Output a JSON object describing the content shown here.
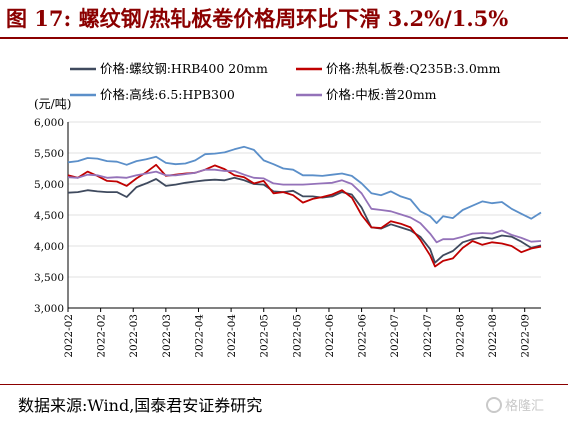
{
  "header": {
    "title": "图 17:  螺纹钢/热轧板卷价格周环比下滑 3.2%/1.5%"
  },
  "footer": {
    "source": "数据来源:Wind,国泰君安证券研究",
    "watermark_text": "格隆汇"
  },
  "chart_data": {
    "type": "line",
    "unit_label": "(元/吨)",
    "ylim": [
      3000,
      6000
    ],
    "yticks": [
      3000,
      3500,
      4000,
      4500,
      5000,
      5500,
      6000
    ],
    "ytick_labels": [
      "3,000",
      "3,500",
      "4,000",
      "4,500",
      "5,000",
      "5,500",
      "6,000"
    ],
    "xticks": [
      "2022-02",
      "2022-02",
      "2022-03",
      "2022-03",
      "2022-04",
      "2022-04",
      "2022-05",
      "2022-05",
      "2022-06",
      "2022-06",
      "2022-07",
      "2022-07",
      "2022-08",
      "2022-08",
      "2022-09"
    ],
    "grid": "horizontal",
    "legend_position": "top",
    "x_index_range": [
      0,
      14.5
    ],
    "series": [
      {
        "name": "价格:螺纹钢:HRB400 20mm",
        "color": "#3f4a5e",
        "points": [
          [
            0,
            4860
          ],
          [
            0.3,
            4870
          ],
          [
            0.6,
            4900
          ],
          [
            0.9,
            4880
          ],
          [
            1.2,
            4870
          ],
          [
            1.5,
            4870
          ],
          [
            1.8,
            4790
          ],
          [
            2.1,
            4950
          ],
          [
            2.4,
            5010
          ],
          [
            2.7,
            5080
          ],
          [
            3.0,
            4970
          ],
          [
            3.3,
            4990
          ],
          [
            3.6,
            5020
          ],
          [
            3.9,
            5040
          ],
          [
            4.2,
            5060
          ],
          [
            4.5,
            5070
          ],
          [
            4.8,
            5060
          ],
          [
            5.1,
            5100
          ],
          [
            5.4,
            5060
          ],
          [
            5.7,
            5000
          ],
          [
            6.0,
            4990
          ],
          [
            6.3,
            4880
          ],
          [
            6.6,
            4870
          ],
          [
            6.9,
            4890
          ],
          [
            7.2,
            4800
          ],
          [
            7.5,
            4800
          ],
          [
            7.8,
            4780
          ],
          [
            8.1,
            4800
          ],
          [
            8.4,
            4870
          ],
          [
            8.7,
            4830
          ],
          [
            9.0,
            4620
          ],
          [
            9.3,
            4300
          ],
          [
            9.6,
            4280
          ],
          [
            9.9,
            4350
          ],
          [
            10.2,
            4300
          ],
          [
            10.5,
            4250
          ],
          [
            10.8,
            4150
          ],
          [
            11.1,
            3950
          ],
          [
            11.25,
            3730
          ],
          [
            11.5,
            3850
          ],
          [
            11.8,
            3920
          ],
          [
            12.1,
            4060
          ],
          [
            12.4,
            4110
          ],
          [
            12.7,
            4140
          ],
          [
            13.0,
            4120
          ],
          [
            13.3,
            4170
          ],
          [
            13.6,
            4150
          ],
          [
            13.9,
            4070
          ],
          [
            14.2,
            3970
          ],
          [
            14.5,
            4010
          ]
        ]
      },
      {
        "name": "价格:热轧板卷:Q235B:3.0mm",
        "color": "#c00000",
        "points": [
          [
            0,
            5140
          ],
          [
            0.3,
            5100
          ],
          [
            0.6,
            5200
          ],
          [
            0.9,
            5130
          ],
          [
            1.2,
            5050
          ],
          [
            1.5,
            5040
          ],
          [
            1.8,
            4970
          ],
          [
            2.1,
            5090
          ],
          [
            2.4,
            5190
          ],
          [
            2.7,
            5310
          ],
          [
            3.0,
            5130
          ],
          [
            3.3,
            5150
          ],
          [
            3.6,
            5170
          ],
          [
            3.9,
            5180
          ],
          [
            4.2,
            5230
          ],
          [
            4.5,
            5300
          ],
          [
            4.8,
            5240
          ],
          [
            5.1,
            5140
          ],
          [
            5.4,
            5110
          ],
          [
            5.7,
            5010
          ],
          [
            6.0,
            5050
          ],
          [
            6.3,
            4850
          ],
          [
            6.6,
            4870
          ],
          [
            6.9,
            4820
          ],
          [
            7.2,
            4700
          ],
          [
            7.5,
            4760
          ],
          [
            7.8,
            4790
          ],
          [
            8.1,
            4830
          ],
          [
            8.4,
            4900
          ],
          [
            8.7,
            4780
          ],
          [
            9.0,
            4500
          ],
          [
            9.3,
            4300
          ],
          [
            9.6,
            4290
          ],
          [
            9.9,
            4400
          ],
          [
            10.2,
            4360
          ],
          [
            10.5,
            4300
          ],
          [
            10.8,
            4100
          ],
          [
            11.1,
            3850
          ],
          [
            11.25,
            3670
          ],
          [
            11.5,
            3760
          ],
          [
            11.8,
            3800
          ],
          [
            12.1,
            3970
          ],
          [
            12.4,
            4080
          ],
          [
            12.7,
            4020
          ],
          [
            13.0,
            4060
          ],
          [
            13.3,
            4040
          ],
          [
            13.6,
            4000
          ],
          [
            13.9,
            3900
          ],
          [
            14.2,
            3960
          ],
          [
            14.5,
            3990
          ]
        ]
      },
      {
        "name": "价格:高线:6.5:HPB300",
        "color": "#5b8fc9",
        "points": [
          [
            0,
            5350
          ],
          [
            0.3,
            5370
          ],
          [
            0.6,
            5420
          ],
          [
            0.9,
            5410
          ],
          [
            1.2,
            5370
          ],
          [
            1.5,
            5360
          ],
          [
            1.8,
            5310
          ],
          [
            2.1,
            5370
          ],
          [
            2.4,
            5400
          ],
          [
            2.7,
            5440
          ],
          [
            3.0,
            5340
          ],
          [
            3.3,
            5320
          ],
          [
            3.6,
            5330
          ],
          [
            3.9,
            5380
          ],
          [
            4.2,
            5480
          ],
          [
            4.5,
            5490
          ],
          [
            4.8,
            5510
          ],
          [
            5.1,
            5560
          ],
          [
            5.4,
            5600
          ],
          [
            5.7,
            5550
          ],
          [
            6.0,
            5380
          ],
          [
            6.3,
            5320
          ],
          [
            6.6,
            5250
          ],
          [
            6.9,
            5230
          ],
          [
            7.2,
            5140
          ],
          [
            7.5,
            5140
          ],
          [
            7.8,
            5130
          ],
          [
            8.1,
            5150
          ],
          [
            8.4,
            5170
          ],
          [
            8.7,
            5130
          ],
          [
            9.0,
            5010
          ],
          [
            9.3,
            4850
          ],
          [
            9.6,
            4820
          ],
          [
            9.9,
            4880
          ],
          [
            10.2,
            4800
          ],
          [
            10.5,
            4750
          ],
          [
            10.8,
            4560
          ],
          [
            11.1,
            4480
          ],
          [
            11.3,
            4370
          ],
          [
            11.5,
            4480
          ],
          [
            11.8,
            4450
          ],
          [
            12.1,
            4580
          ],
          [
            12.4,
            4650
          ],
          [
            12.7,
            4720
          ],
          [
            13.0,
            4690
          ],
          [
            13.3,
            4710
          ],
          [
            13.6,
            4600
          ],
          [
            13.9,
            4520
          ],
          [
            14.2,
            4440
          ],
          [
            14.5,
            4540
          ]
        ]
      },
      {
        "name": "价格:中板:普20mm",
        "color": "#9472b9",
        "points": [
          [
            0,
            5110
          ],
          [
            0.3,
            5100
          ],
          [
            0.6,
            5150
          ],
          [
            0.9,
            5140
          ],
          [
            1.2,
            5100
          ],
          [
            1.5,
            5110
          ],
          [
            1.8,
            5100
          ],
          [
            2.1,
            5140
          ],
          [
            2.4,
            5170
          ],
          [
            2.7,
            5200
          ],
          [
            3.0,
            5140
          ],
          [
            3.3,
            5140
          ],
          [
            3.6,
            5160
          ],
          [
            3.9,
            5180
          ],
          [
            4.2,
            5230
          ],
          [
            4.5,
            5230
          ],
          [
            4.8,
            5210
          ],
          [
            5.1,
            5210
          ],
          [
            5.4,
            5150
          ],
          [
            5.7,
            5100
          ],
          [
            6.0,
            5090
          ],
          [
            6.3,
            5010
          ],
          [
            6.6,
            4990
          ],
          [
            6.9,
            4990
          ],
          [
            7.2,
            4990
          ],
          [
            7.5,
            5000
          ],
          [
            7.8,
            5010
          ],
          [
            8.1,
            5020
          ],
          [
            8.4,
            5060
          ],
          [
            8.7,
            5000
          ],
          [
            9.0,
            4850
          ],
          [
            9.3,
            4600
          ],
          [
            9.6,
            4580
          ],
          [
            9.9,
            4560
          ],
          [
            10.2,
            4510
          ],
          [
            10.5,
            4460
          ],
          [
            10.8,
            4370
          ],
          [
            11.1,
            4200
          ],
          [
            11.3,
            4060
          ],
          [
            11.5,
            4110
          ],
          [
            11.8,
            4110
          ],
          [
            12.1,
            4150
          ],
          [
            12.4,
            4200
          ],
          [
            12.7,
            4210
          ],
          [
            13.0,
            4200
          ],
          [
            13.3,
            4250
          ],
          [
            13.6,
            4180
          ],
          [
            13.9,
            4130
          ],
          [
            14.2,
            4070
          ],
          [
            14.5,
            4080
          ]
        ]
      }
    ]
  }
}
